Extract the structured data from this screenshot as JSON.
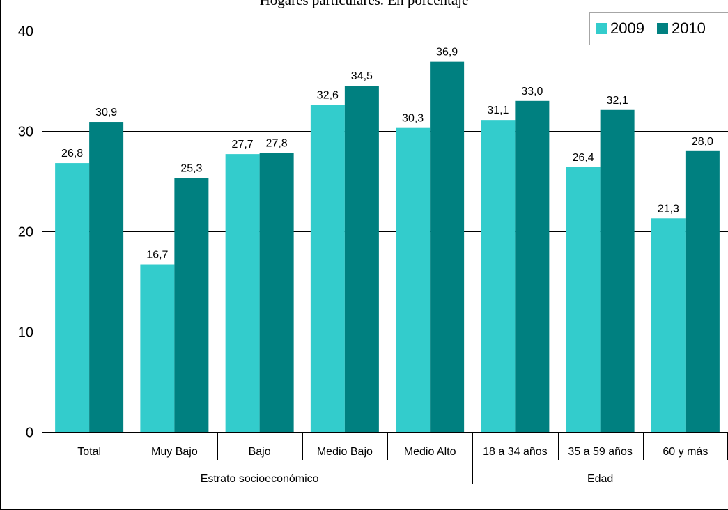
{
  "chart_data": {
    "type": "bar",
    "title": "Hogares particulares. En porcentaje",
    "xlabel": "",
    "ylabel": "",
    "ylim": [
      0,
      40
    ],
    "yticks": [
      0,
      10,
      20,
      30,
      40
    ],
    "grid": true,
    "legend_position": "top-right",
    "categories": [
      "Total",
      "Muy Bajo",
      "Bajo",
      "Medio Bajo",
      "Medio Alto",
      "18 a 34 años",
      "35 a 59 años",
      "60 y más"
    ],
    "category_groups": [
      {
        "label": "Estrato socioeconómico",
        "categories": [
          "Total",
          "Muy Bajo",
          "Bajo",
          "Medio Bajo",
          "Medio Alto"
        ]
      },
      {
        "label": "Edad",
        "categories": [
          "18 a 34 años",
          "35 a 59 años",
          "60 y más"
        ]
      }
    ],
    "series": [
      {
        "name": "2009",
        "color": "#33cccc",
        "values": [
          26.8,
          16.7,
          27.7,
          32.6,
          30.3,
          31.1,
          26.4,
          21.3
        ],
        "labels": [
          "26,8",
          "16,7",
          "27,7",
          "32,6",
          "30,3",
          "31,1",
          "26,4",
          "21,3"
        ]
      },
      {
        "name": "2010",
        "color": "#008080",
        "values": [
          30.9,
          25.3,
          27.8,
          34.5,
          36.9,
          33.0,
          32.1,
          28.0
        ],
        "labels": [
          "30,9",
          "25,3",
          "27,8",
          "34,5",
          "36,9",
          "33,0",
          "32,1",
          "28,0"
        ]
      }
    ]
  },
  "legend": {
    "items": [
      {
        "label": "2009",
        "color": "#33cccc"
      },
      {
        "label": "2010",
        "color": "#008080"
      }
    ]
  }
}
